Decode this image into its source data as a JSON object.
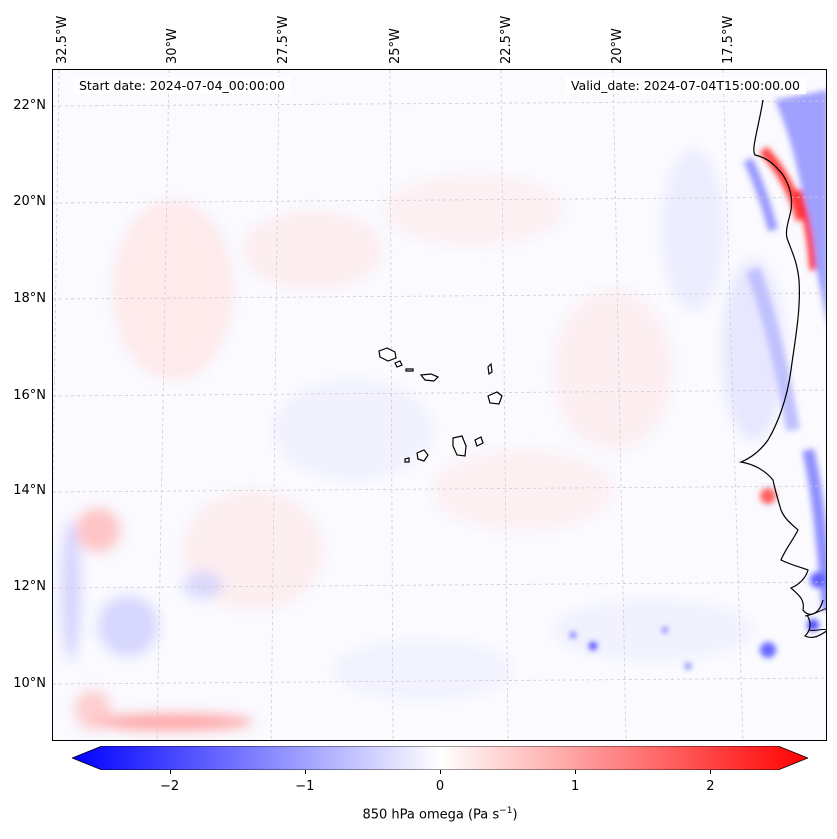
{
  "map": {
    "start_date": "Start date: 2024-07-04_00:00:00",
    "valid_date": "Valid_date: 2024-07-04T15:00:00.00",
    "lon_labels": [
      "32.5°W",
      "30°W",
      "27.5°W",
      "25°W",
      "22.5°W",
      "20°W",
      "17.5°W"
    ],
    "lat_labels": [
      "22°N",
      "20°N",
      "18°N",
      "16°N",
      "14°N",
      "12°N",
      "10°N"
    ],
    "coastline_color": "#000000",
    "gridline_color": "#cccccc"
  },
  "colorbar": {
    "ticks": [
      "−2",
      "−1",
      "0",
      "1",
      "2"
    ],
    "tick_values": [
      -2,
      -1,
      0,
      1,
      2
    ],
    "range": [
      -2.5,
      2.5
    ],
    "label_prefix": "850 hPa omega (Pa s",
    "label_exp": "−1",
    "label_suffix": ")",
    "low_color": "#0000ff",
    "mid_color": "#ffffff",
    "high_color": "#ff0000"
  }
}
